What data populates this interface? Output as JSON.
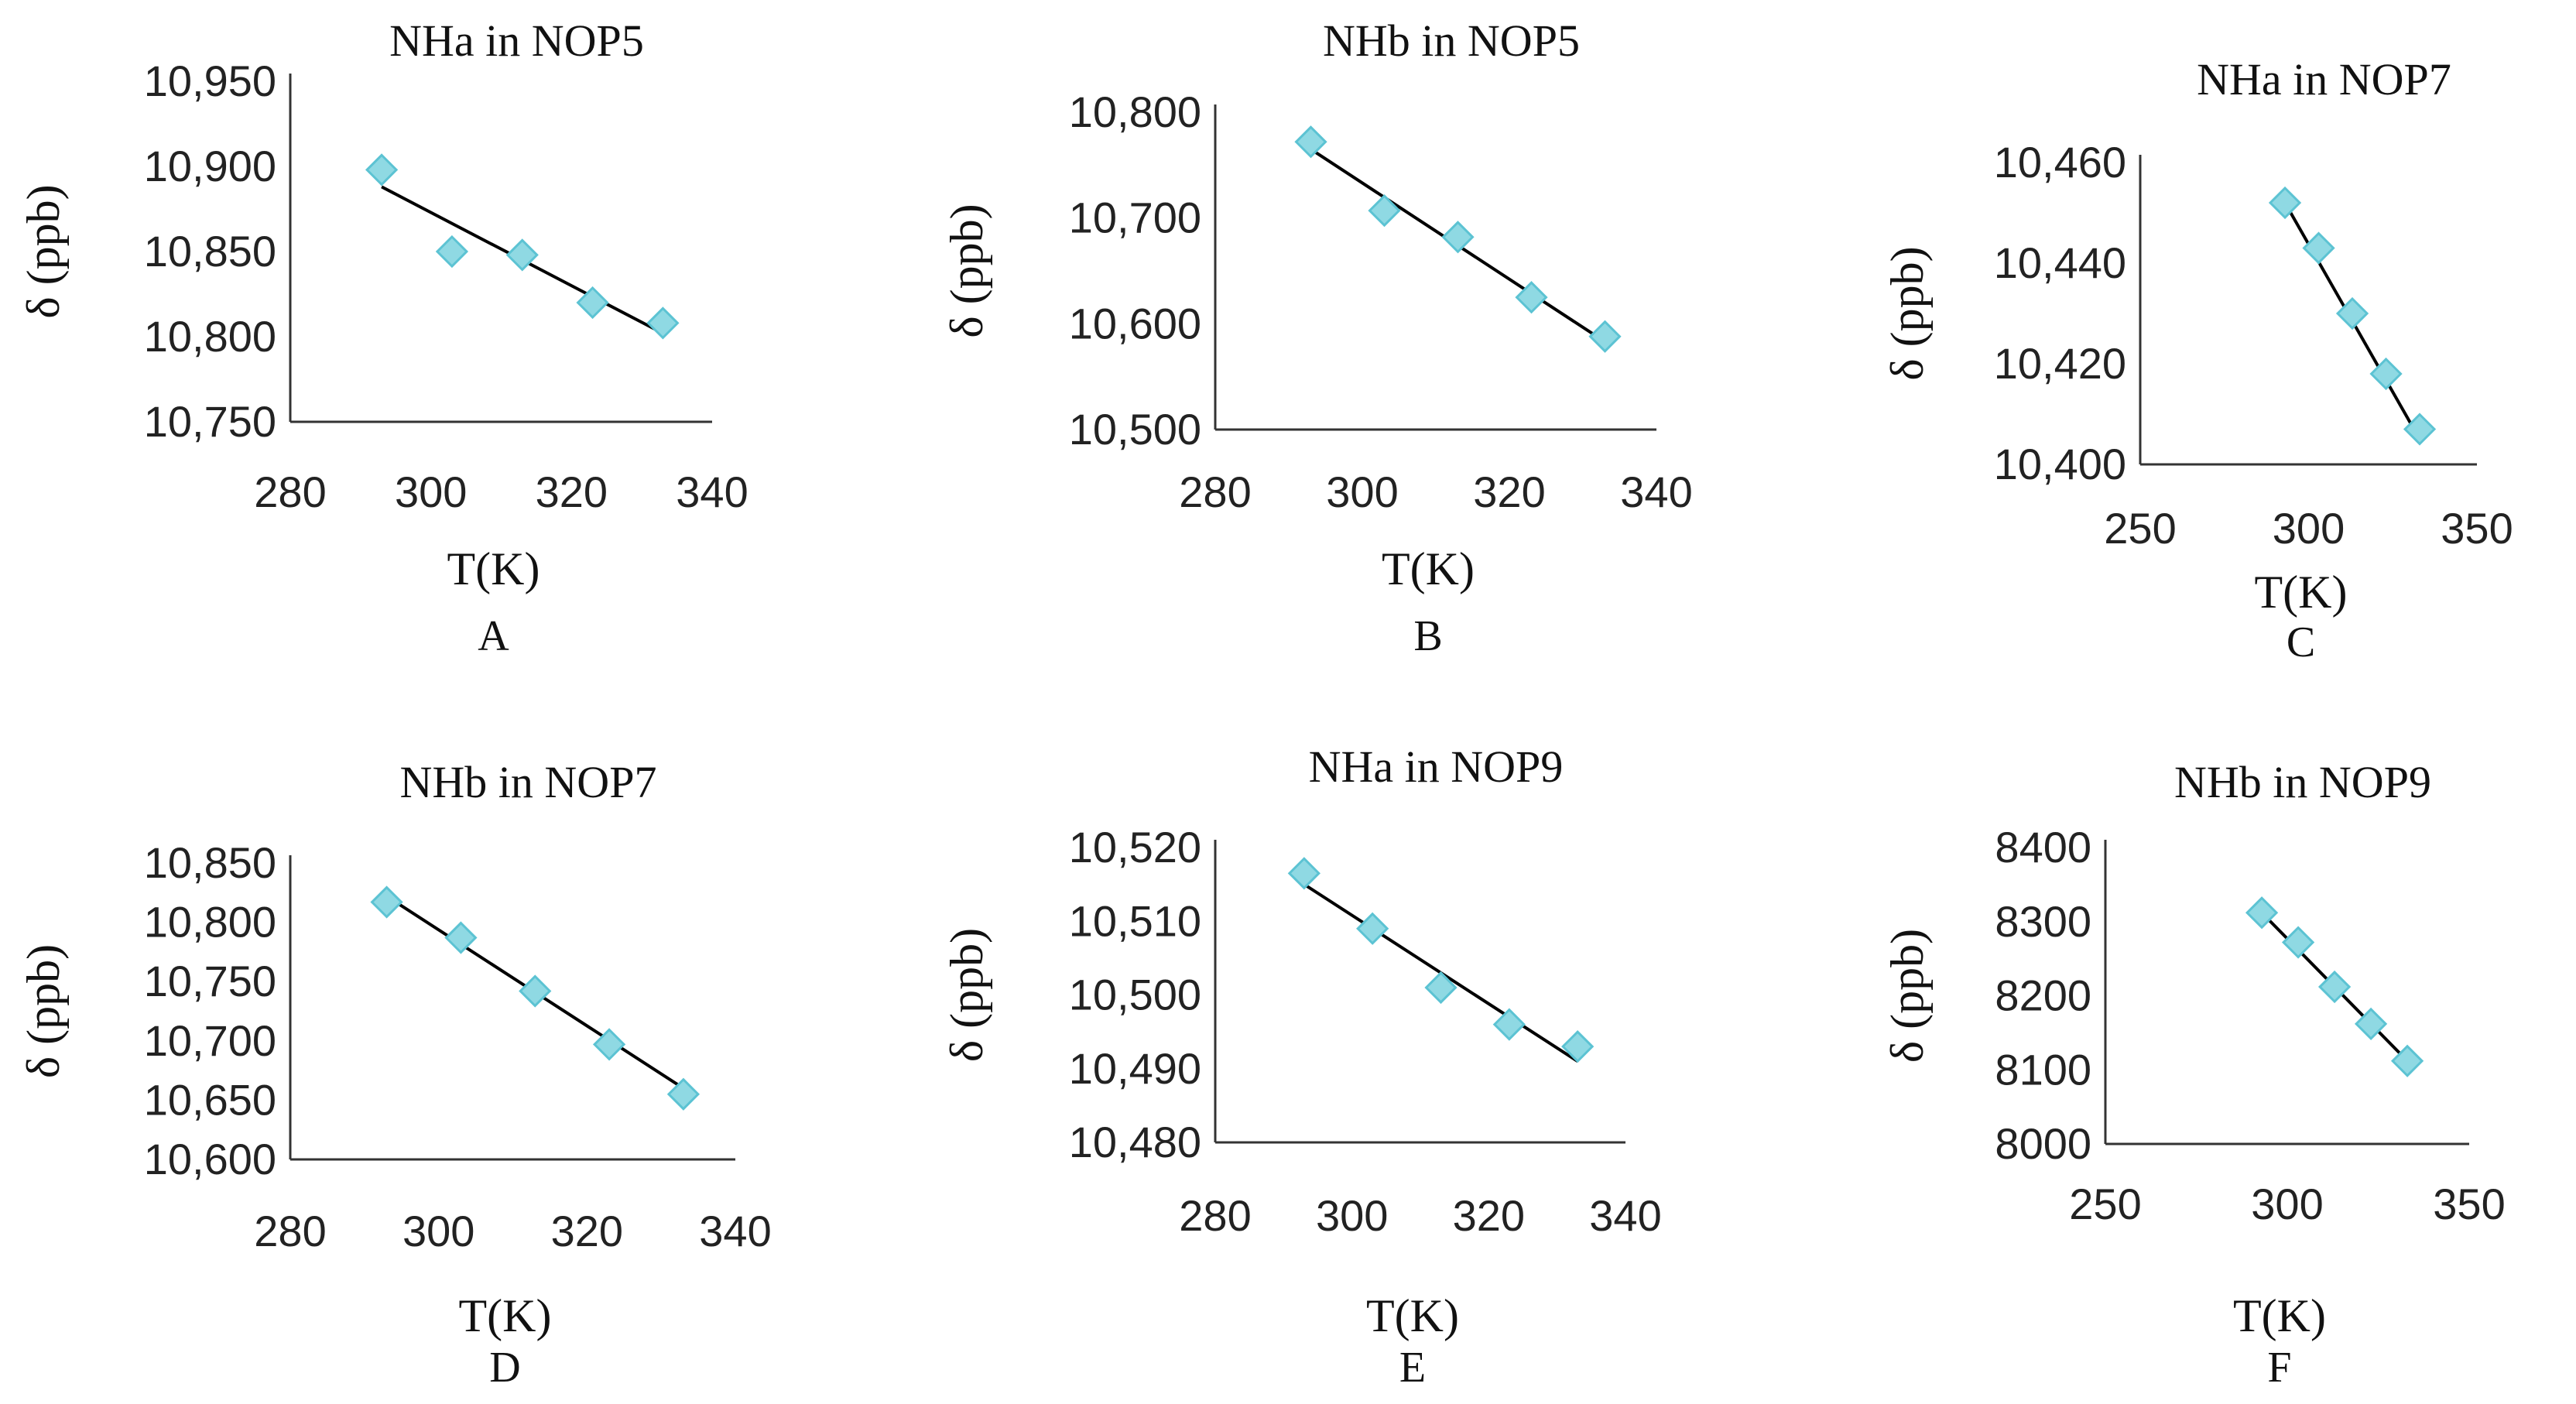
{
  "chart_data": [
    {
      "type": "scatter",
      "letter": "A",
      "title": "NHa in NOP5",
      "xlabel": "T(K)",
      "ylabel": "δ (ppb)",
      "xlim": [
        280,
        340
      ],
      "ylim": [
        10750,
        10950
      ],
      "xticks": [
        280,
        300,
        320,
        340
      ],
      "yticks": [
        10750,
        10800,
        10850,
        10900,
        10950
      ],
      "xtick_labels": [
        "280",
        "300",
        "320",
        "340"
      ],
      "ytick_labels": [
        "10,750",
        "10,800",
        "10,850",
        "10,900",
        "10,950"
      ],
      "series": [
        {
          "name": "NHa in NOP5",
          "x": [
            293,
            303,
            313,
            323,
            333
          ],
          "y": [
            10898,
            10850,
            10848,
            10820,
            10808
          ]
        }
      ],
      "trendline": {
        "x": [
          293,
          333
        ],
        "y": [
          10888,
          10802
        ]
      }
    },
    {
      "type": "scatter",
      "letter": "B",
      "title": "NHb in NOP5",
      "xlabel": "T(K)",
      "ylabel": "δ (ppb)",
      "xlim": [
        280,
        340
      ],
      "ylim": [
        10500,
        10800
      ],
      "xticks": [
        280,
        300,
        320,
        340
      ],
      "yticks": [
        10500,
        10600,
        10700,
        10800
      ],
      "xtick_labels": [
        "280",
        "300",
        "320",
        "340"
      ],
      "ytick_labels": [
        "10,500",
        "10,600",
        "10,700",
        "10,800"
      ],
      "series": [
        {
          "name": "NHb in NOP5",
          "x": [
            293,
            303,
            313,
            323,
            333
          ],
          "y": [
            10772,
            10707,
            10682,
            10625,
            10588
          ]
        }
      ],
      "trendline": {
        "x": [
          293,
          333
        ],
        "y": [
          10765,
          10583
        ]
      }
    },
    {
      "type": "scatter",
      "letter": "C",
      "title": "NHa in NOP7",
      "xlabel": "T(K)",
      "ylabel": "δ (ppb)",
      "xlim": [
        250,
        350
      ],
      "ylim": [
        10400,
        10460
      ],
      "xticks": [
        250,
        300,
        350
      ],
      "yticks": [
        10400,
        10420,
        10440,
        10460
      ],
      "xtick_labels": [
        "250",
        "300",
        "350"
      ],
      "ytick_labels": [
        "10,400",
        "10,420",
        "10,440",
        "10,460"
      ],
      "series": [
        {
          "name": "NHa in NOP7",
          "x": [
            293,
            303,
            313,
            323,
            333
          ],
          "y": [
            10452,
            10443,
            10430,
            10418,
            10407
          ]
        }
      ],
      "trendline": {
        "x": [
          293,
          333
        ],
        "y": [
          10452,
          10405
        ]
      }
    },
    {
      "type": "scatter",
      "letter": "D",
      "title": "NHb in NOP7",
      "xlabel": "T(K)",
      "ylabel": "δ (ppb)",
      "xlim": [
        280,
        340
      ],
      "ylim": [
        10600,
        10850
      ],
      "xticks": [
        280,
        300,
        320,
        340
      ],
      "yticks": [
        10600,
        10650,
        10700,
        10750,
        10800,
        10850
      ],
      "xtick_labels": [
        "280",
        "300",
        "320",
        "340"
      ],
      "ytick_labels": [
        "10,600",
        "10,650",
        "10,700",
        "10,750",
        "10,800",
        "10,850"
      ],
      "series": [
        {
          "name": "NHb in NOP7",
          "x": [
            293,
            303,
            313,
            323,
            333
          ],
          "y": [
            10817,
            10787,
            10742,
            10697,
            10655
          ]
        }
      ],
      "trendline": {
        "x": [
          293,
          333
        ],
        "y": [
          10822,
          10660
        ]
      }
    },
    {
      "type": "scatter",
      "letter": "E",
      "title": "NHa in NOP9",
      "xlabel": "T(K)",
      "ylabel": "δ (ppb)",
      "xlim": [
        280,
        340
      ],
      "ylim": [
        10480,
        10520
      ],
      "xticks": [
        280,
        300,
        320,
        340
      ],
      "yticks": [
        10480,
        10490,
        10500,
        10510,
        10520
      ],
      "xtick_labels": [
        "280",
        "300",
        "320",
        "340"
      ],
      "ytick_labels": [
        "10,480",
        "10,490",
        "10,500",
        "10,510",
        "10,520"
      ],
      "series": [
        {
          "name": "NHa in NOP9",
          "x": [
            293,
            303,
            313,
            323,
            333
          ],
          "y": [
            10516.5,
            10509,
            10501,
            10496,
            10493
          ]
        }
      ],
      "trendline": {
        "x": [
          293,
          333
        ],
        "y": [
          10515,
          10491
        ]
      }
    },
    {
      "type": "scatter",
      "letter": "F",
      "title": "NHb in NOP9",
      "xlabel": "T(K)",
      "ylabel": "δ (ppb)",
      "xlim": [
        250,
        350
      ],
      "ylim": [
        8000,
        8400
      ],
      "xticks": [
        250,
        300,
        350
      ],
      "yticks": [
        8000,
        8100,
        8200,
        8300,
        8400
      ],
      "xtick_labels": [
        "250",
        "300",
        "350"
      ],
      "ytick_labels": [
        "8000",
        "8100",
        "8200",
        "8300",
        "8400"
      ],
      "series": [
        {
          "name": "NHb in NOP9",
          "x": [
            293,
            303,
            313,
            323,
            333
          ],
          "y": [
            8312,
            8272,
            8212,
            8162,
            8112
          ]
        }
      ],
      "trendline": {
        "x": [
          293,
          333
        ],
        "y": [
          8312,
          8112
        ]
      }
    }
  ]
}
